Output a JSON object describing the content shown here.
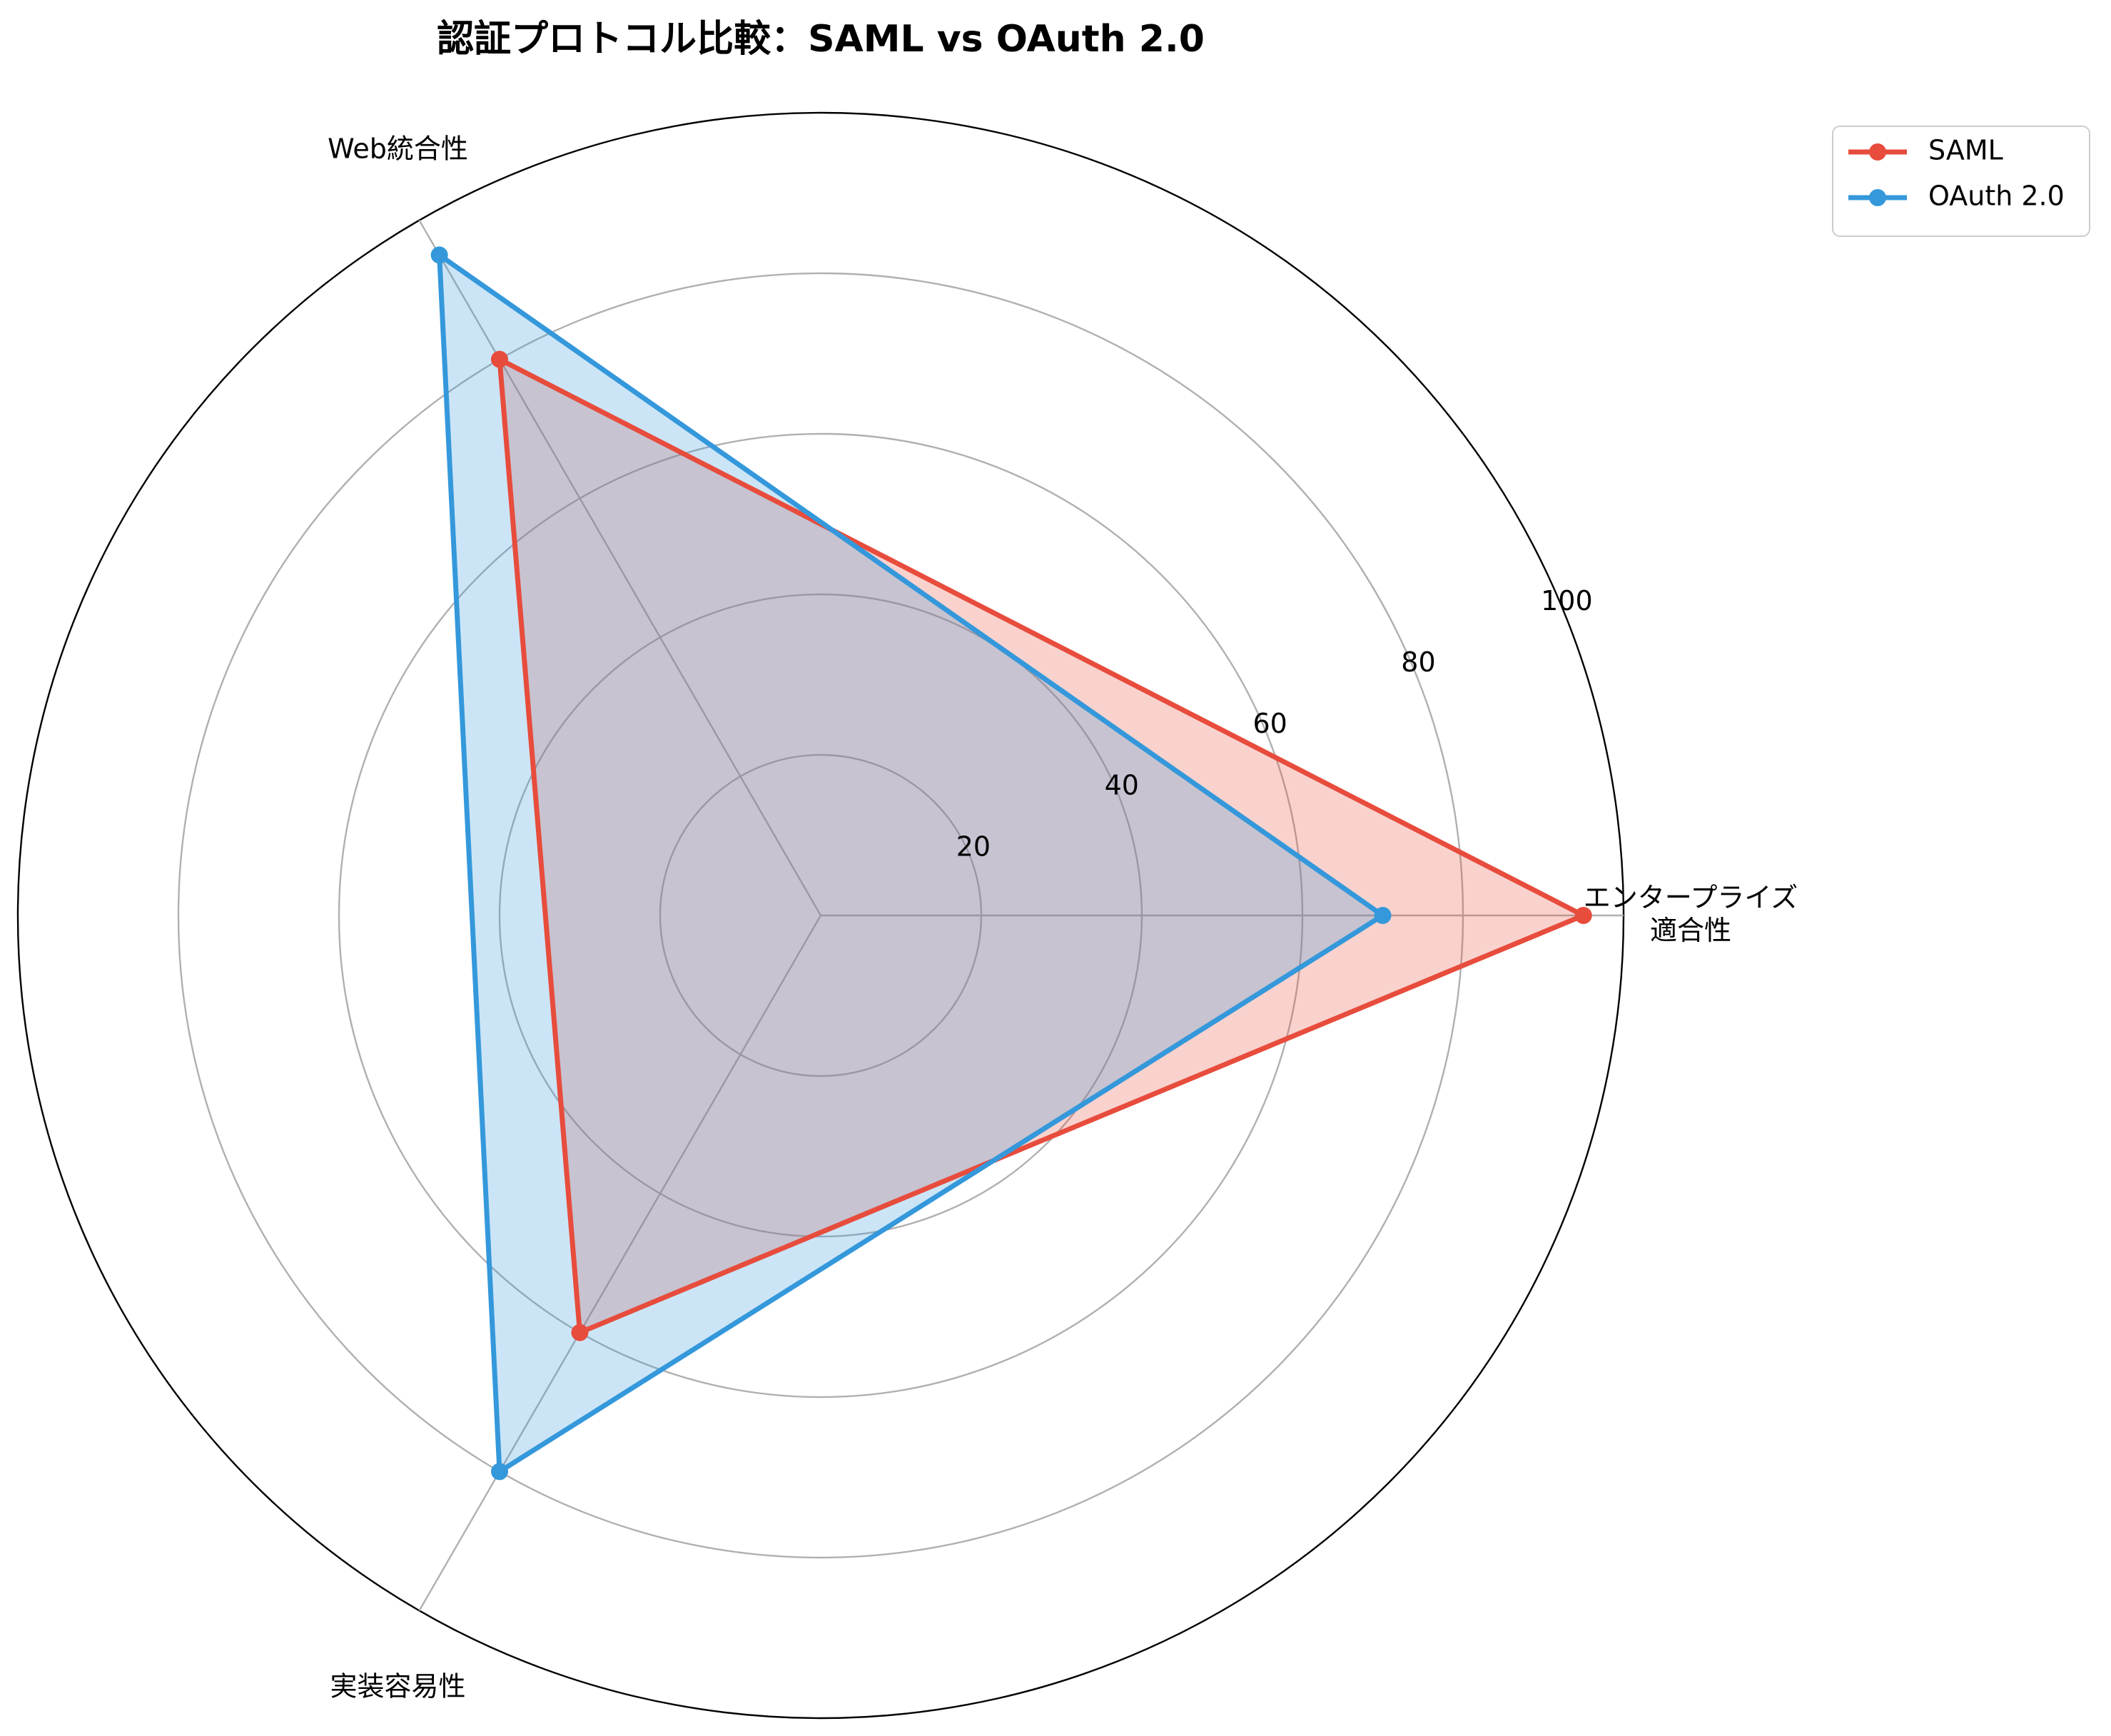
{
  "chart_data": {
    "type": "radar",
    "title": "認証プロトコル比較：SAML vs OAuth 2.0",
    "categories": [
      "エンタープライズ\n適合性",
      "Web統合性",
      "実装容易性"
    ],
    "rmin": 0,
    "rmax": 100,
    "rticks": [
      20,
      40,
      60,
      80,
      100
    ],
    "grid": true,
    "legend_position": "top-right, outside",
    "series": [
      {
        "name": "SAML",
        "values": [
          95,
          80,
          60
        ],
        "color": "#e74c3c"
      },
      {
        "name": "OAuth 2.0",
        "values": [
          70,
          95,
          80
        ],
        "color": "#3498db"
      }
    ]
  }
}
